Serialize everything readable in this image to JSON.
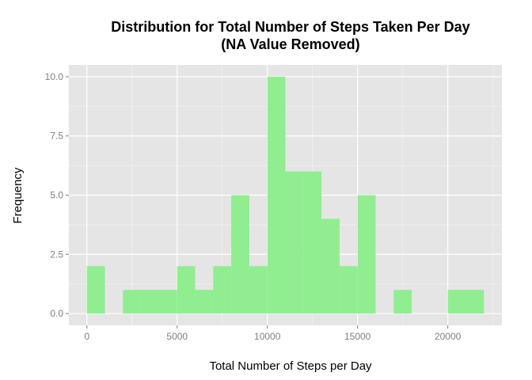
{
  "chart_data": {
    "type": "bar",
    "title_line1": "Distribution for Total Number of Steps Taken Per Day",
    "title_line2": "(NA Value Removed)",
    "xlabel": "Total Number of Steps per Day",
    "ylabel": "Frequency",
    "bin_width": 1000,
    "bins": [
      {
        "x0": 0,
        "count": 2
      },
      {
        "x0": 2000,
        "count": 1
      },
      {
        "x0": 3000,
        "count": 1
      },
      {
        "x0": 4000,
        "count": 1
      },
      {
        "x0": 5000,
        "count": 2
      },
      {
        "x0": 6000,
        "count": 1
      },
      {
        "x0": 7000,
        "count": 2
      },
      {
        "x0": 8000,
        "count": 5
      },
      {
        "x0": 9000,
        "count": 2
      },
      {
        "x0": 10000,
        "count": 10
      },
      {
        "x0": 11000,
        "count": 6
      },
      {
        "x0": 12000,
        "count": 6
      },
      {
        "x0": 13000,
        "count": 4
      },
      {
        "x0": 14000,
        "count": 2
      },
      {
        "x0": 15000,
        "count": 5
      },
      {
        "x0": 17000,
        "count": 1
      },
      {
        "x0": 20000,
        "count": 1
      },
      {
        "x0": 21000,
        "count": 1
      }
    ],
    "xlim": [
      -1000,
      23000
    ],
    "ylim": [
      -0.5,
      10.5
    ],
    "x_ticks": [
      0,
      5000,
      10000,
      15000,
      20000
    ],
    "x_tick_labels": [
      "0",
      "5000",
      "10000",
      "15000",
      "20000"
    ],
    "y_ticks": [
      0,
      2.5,
      5,
      7.5,
      10
    ],
    "y_tick_labels": [
      "0.0",
      "2.5",
      "5.0",
      "7.5",
      "10.0"
    ],
    "grid": true,
    "colors": {
      "bar": "#90ee90",
      "panel": "#e5e5e5",
      "grid_major": "#ffffff",
      "grid_minor": "#f2f2f2",
      "tick_text": "#7f7f7f"
    }
  }
}
